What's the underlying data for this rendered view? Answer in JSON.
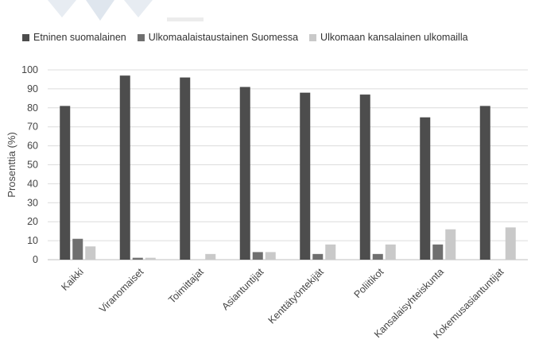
{
  "chart_data": {
    "type": "bar",
    "title": "",
    "xlabel": "",
    "ylabel": "Prosenttia (%)",
    "ylim": [
      0,
      100
    ],
    "yticks": [
      0,
      10,
      20,
      30,
      40,
      50,
      60,
      70,
      80,
      90,
      100
    ],
    "grid": true,
    "legend_position": "top",
    "categories": [
      "Kaikki",
      "Viranomaiset",
      "Toimittajat",
      "Asiantuntijat",
      "Kenttätyöntekijät",
      "Poliitikot",
      "Kansalaisyhteiskunta",
      "Kokemusasiantuntijat"
    ],
    "series": [
      {
        "name": "Etninen suomalainen",
        "color": "#4d4d4d",
        "values": [
          81,
          97,
          96,
          91,
          88,
          87,
          75,
          81
        ]
      },
      {
        "name": "Ulkomaalaistaustainen Suomessa",
        "color": "#6f6f6f",
        "values": [
          11,
          1,
          0,
          4,
          3,
          3,
          8,
          0
        ]
      },
      {
        "name": "Ulkomaan kansalainen ulkomailla",
        "color": "#c9c9c9",
        "values": [
          7,
          1,
          3,
          4,
          8,
          8,
          16,
          17
        ]
      }
    ]
  }
}
